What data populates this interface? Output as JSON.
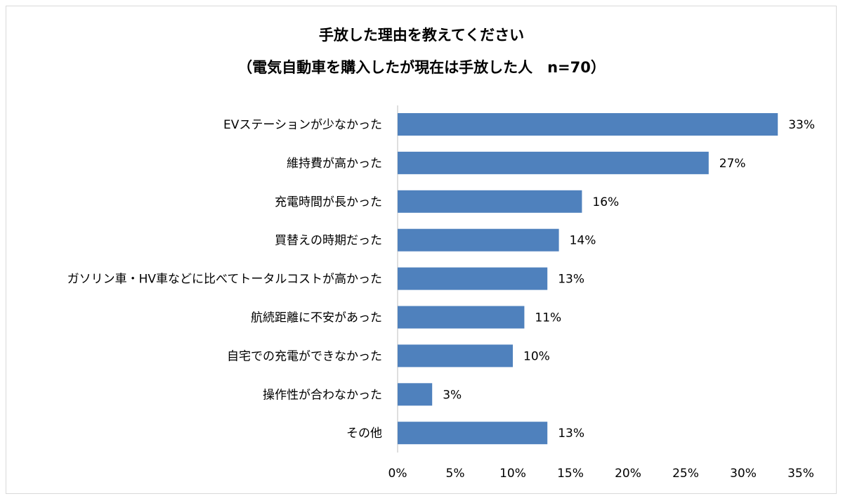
{
  "chart_data": {
    "type": "bar",
    "orientation": "horizontal",
    "title": "手放した理由を教えてください",
    "subtitle": "（電気自動車を購入したが現在は手放した人　n=70）",
    "categories": [
      "EVステーションが少なかった",
      "維持費が高かった",
      "充電時間が長かった",
      "買替えの時期だった",
      "ガソリン車・HV車などに比べてトータルコストが高かった",
      "航続距離に不安があった",
      "自宅での充電ができなかった",
      "操作性が合わなかった",
      "その他"
    ],
    "values": [
      33,
      27,
      16,
      14,
      13,
      11,
      10,
      3,
      13
    ],
    "value_labels": [
      "33%",
      "27%",
      "16%",
      "14%",
      "13%",
      "11%",
      "10%",
      "3%",
      "13%"
    ],
    "xlim": [
      0,
      35
    ],
    "x_ticks": [
      0,
      5,
      10,
      15,
      20,
      25,
      30,
      35
    ],
    "x_tick_labels": [
      "0%",
      "5%",
      "10%",
      "15%",
      "20%",
      "25%",
      "30%",
      "35%"
    ],
    "bar_color": "#4f81bd",
    "axis_color": "#bfbfbf",
    "grid": false,
    "legend": false
  }
}
